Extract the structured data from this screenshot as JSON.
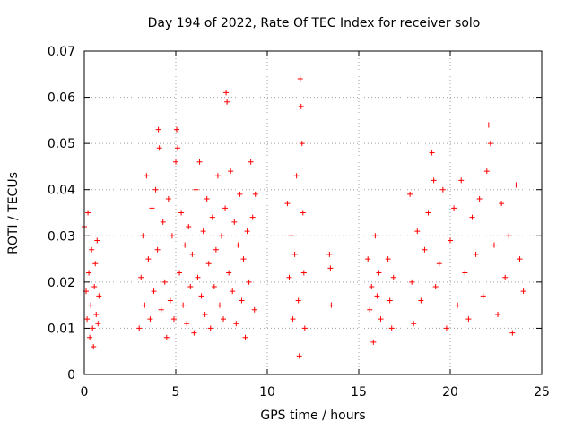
{
  "chart_data": {
    "type": "scatter",
    "title": "Day 194 of 2022, Rate Of TEC Index for receiver solo",
    "xlabel": "GPS time / hours",
    "ylabel": "ROTI / TECUs",
    "xlim": [
      0,
      25
    ],
    "ylim": [
      0,
      0.07
    ],
    "xticks": [
      "0",
      "5",
      "10",
      "15",
      "20",
      "25"
    ],
    "yticks": [
      "0",
      "0.01",
      "0.02",
      "0.03",
      "0.04",
      "0.05",
      "0.06",
      "0.07"
    ],
    "grid": true,
    "marker": "+",
    "color": "#ff0000",
    "series": [
      {
        "points": [
          [
            0.0,
            0.032
          ],
          [
            0.1,
            0.018
          ],
          [
            0.15,
            0.012
          ],
          [
            0.2,
            0.035
          ],
          [
            0.25,
            0.022
          ],
          [
            0.3,
            0.008
          ],
          [
            0.35,
            0.015
          ],
          [
            0.4,
            0.027
          ],
          [
            0.45,
            0.01
          ],
          [
            0.5,
            0.006
          ],
          [
            0.55,
            0.019
          ],
          [
            0.6,
            0.024
          ],
          [
            0.65,
            0.013
          ],
          [
            0.7,
            0.029
          ],
          [
            0.75,
            0.011
          ],
          [
            0.8,
            0.017
          ],
          [
            3.0,
            0.01
          ],
          [
            3.1,
            0.021
          ],
          [
            3.2,
            0.03
          ],
          [
            3.3,
            0.015
          ],
          [
            3.4,
            0.043
          ],
          [
            3.5,
            0.025
          ],
          [
            3.6,
            0.012
          ],
          [
            3.7,
            0.036
          ],
          [
            3.8,
            0.018
          ],
          [
            3.9,
            0.04
          ],
          [
            4.0,
            0.027
          ],
          [
            4.05,
            0.053
          ],
          [
            4.1,
            0.049
          ],
          [
            4.2,
            0.014
          ],
          [
            4.3,
            0.033
          ],
          [
            4.4,
            0.02
          ],
          [
            4.5,
            0.008
          ],
          [
            4.6,
            0.038
          ],
          [
            4.7,
            0.016
          ],
          [
            4.8,
            0.03
          ],
          [
            4.9,
            0.012
          ],
          [
            5.0,
            0.046
          ],
          [
            5.05,
            0.053
          ],
          [
            5.1,
            0.049
          ],
          [
            5.2,
            0.022
          ],
          [
            5.3,
            0.035
          ],
          [
            5.4,
            0.015
          ],
          [
            5.5,
            0.028
          ],
          [
            5.6,
            0.011
          ],
          [
            5.7,
            0.032
          ],
          [
            5.8,
            0.019
          ],
          [
            5.9,
            0.026
          ],
          [
            6.0,
            0.009
          ],
          [
            6.1,
            0.04
          ],
          [
            6.2,
            0.021
          ],
          [
            6.3,
            0.046
          ],
          [
            6.4,
            0.017
          ],
          [
            6.5,
            0.031
          ],
          [
            6.6,
            0.013
          ],
          [
            6.7,
            0.038
          ],
          [
            6.8,
            0.024
          ],
          [
            6.9,
            0.01
          ],
          [
            7.0,
            0.034
          ],
          [
            7.1,
            0.019
          ],
          [
            7.2,
            0.027
          ],
          [
            7.3,
            0.043
          ],
          [
            7.4,
            0.015
          ],
          [
            7.5,
            0.03
          ],
          [
            7.6,
            0.012
          ],
          [
            7.7,
            0.036
          ],
          [
            7.75,
            0.061
          ],
          [
            7.8,
            0.059
          ],
          [
            7.9,
            0.022
          ],
          [
            8.0,
            0.044
          ],
          [
            8.1,
            0.018
          ],
          [
            8.2,
            0.033
          ],
          [
            8.3,
            0.011
          ],
          [
            8.4,
            0.028
          ],
          [
            8.5,
            0.039
          ],
          [
            8.6,
            0.016
          ],
          [
            8.7,
            0.025
          ],
          [
            8.8,
            0.008
          ],
          [
            8.9,
            0.031
          ],
          [
            9.0,
            0.02
          ],
          [
            9.1,
            0.046
          ],
          [
            9.2,
            0.034
          ],
          [
            9.3,
            0.014
          ],
          [
            9.35,
            0.039
          ],
          [
            11.1,
            0.037
          ],
          [
            11.2,
            0.021
          ],
          [
            11.3,
            0.03
          ],
          [
            11.4,
            0.012
          ],
          [
            11.5,
            0.026
          ],
          [
            11.6,
            0.043
          ],
          [
            11.7,
            0.016
          ],
          [
            11.75,
            0.004
          ],
          [
            11.8,
            0.064
          ],
          [
            11.85,
            0.058
          ],
          [
            11.9,
            0.05
          ],
          [
            11.95,
            0.035
          ],
          [
            12.0,
            0.022
          ],
          [
            12.05,
            0.01
          ],
          [
            13.4,
            0.026
          ],
          [
            13.45,
            0.023
          ],
          [
            13.5,
            0.015
          ],
          [
            15.5,
            0.025
          ],
          [
            15.6,
            0.014
          ],
          [
            15.7,
            0.019
          ],
          [
            15.8,
            0.007
          ],
          [
            15.9,
            0.03
          ],
          [
            16.0,
            0.017
          ],
          [
            16.1,
            0.022
          ],
          [
            16.2,
            0.012
          ],
          [
            16.6,
            0.025
          ],
          [
            16.7,
            0.016
          ],
          [
            16.8,
            0.01
          ],
          [
            16.9,
            0.021
          ],
          [
            17.8,
            0.039
          ],
          [
            17.9,
            0.02
          ],
          [
            18.0,
            0.011
          ],
          [
            18.2,
            0.031
          ],
          [
            18.4,
            0.016
          ],
          [
            18.6,
            0.027
          ],
          [
            18.8,
            0.035
          ],
          [
            19.0,
            0.048
          ],
          [
            19.1,
            0.042
          ],
          [
            19.2,
            0.019
          ],
          [
            19.4,
            0.024
          ],
          [
            19.6,
            0.04
          ],
          [
            19.8,
            0.01
          ],
          [
            20.0,
            0.029
          ],
          [
            20.2,
            0.036
          ],
          [
            20.4,
            0.015
          ],
          [
            20.6,
            0.042
          ],
          [
            20.8,
            0.022
          ],
          [
            21.0,
            0.012
          ],
          [
            21.2,
            0.034
          ],
          [
            21.4,
            0.026
          ],
          [
            21.6,
            0.038
          ],
          [
            21.8,
            0.017
          ],
          [
            22.0,
            0.044
          ],
          [
            22.1,
            0.054
          ],
          [
            22.2,
            0.05
          ],
          [
            22.4,
            0.028
          ],
          [
            22.6,
            0.013
          ],
          [
            22.8,
            0.037
          ],
          [
            23.0,
            0.021
          ],
          [
            23.2,
            0.03
          ],
          [
            23.4,
            0.009
          ],
          [
            23.6,
            0.041
          ],
          [
            23.8,
            0.025
          ],
          [
            24.0,
            0.018
          ]
        ]
      }
    ]
  }
}
